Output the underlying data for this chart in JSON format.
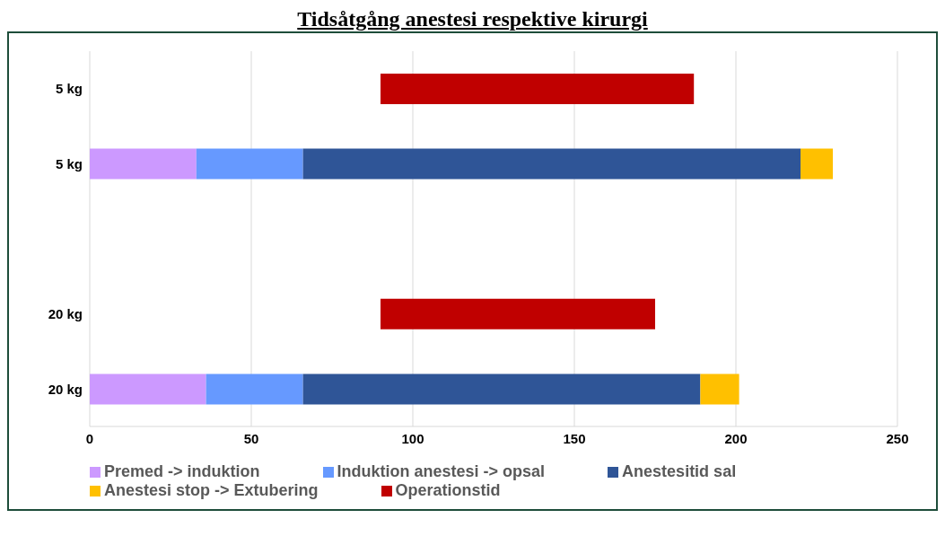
{
  "chart_data": {
    "type": "bar",
    "orientation": "horizontal",
    "stacked": true,
    "title": "Tidsåtgång anestesi respektive kirurgi",
    "categories": [
      "5 kg",
      "5 kg",
      null,
      "20 kg",
      "20 kg"
    ],
    "series": [
      {
        "name": "Premed -> induktion",
        "color": "#cc99ff",
        "values": [
          null,
          33,
          null,
          null,
          36
        ]
      },
      {
        "name": "Induktion anestesi  -> opsal",
        "color": "#6699ff",
        "values": [
          null,
          33,
          null,
          null,
          30
        ]
      },
      {
        "name": "Anestesitid sal",
        "color": "#2f5597",
        "values": [
          null,
          154,
          null,
          null,
          123
        ]
      },
      {
        "name": "Anestesi stop -> Extubering",
        "color": "#ffc000",
        "values": [
          null,
          10,
          null,
          null,
          12
        ]
      },
      {
        "name": "Operationstid",
        "color": "#c00000",
        "values": [
          97,
          null,
          null,
          85,
          null
        ],
        "base": [
          90,
          null,
          null,
          90,
          null
        ]
      }
    ],
    "xlim": [
      0,
      250
    ],
    "xticks": [
      0,
      50,
      100,
      150,
      200,
      250
    ],
    "grid": "x",
    "legend": "bottom"
  }
}
